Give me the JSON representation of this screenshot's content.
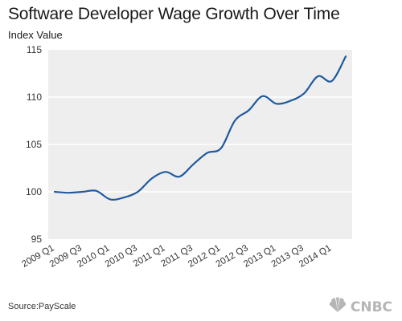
{
  "header": {
    "title": "Software Developer Wage Growth Over Time",
    "subtitle": "Index Value"
  },
  "footer": {
    "source": "Source:PayScale",
    "brand": "CNBC",
    "brand_icon": "peacock-icon"
  },
  "colors": {
    "line": "#1f5a9e",
    "plot_background": "#eeeeee",
    "grid": "#ffffff"
  },
  "chart_data": {
    "type": "line",
    "title": "Software Developer Wage Growth Over Time",
    "ylabel": "Index Value",
    "xlabel": "",
    "ylim": [
      95,
      115
    ],
    "y_ticks": [
      95,
      100,
      105,
      110,
      115
    ],
    "grid": true,
    "legend": "none",
    "x_tick_labels": [
      "2009 Q1",
      "2009 Q3",
      "2010 Q1",
      "2010 Q3",
      "2011 Q1",
      "2011 Q3",
      "2012 Q1",
      "2012 Q3",
      "2013 Q1",
      "2013 Q3",
      "2014 Q1"
    ],
    "x_tick_quarters": [
      0,
      2,
      4,
      6,
      8,
      10,
      12,
      14,
      16,
      18,
      20
    ],
    "quarters": [
      0,
      1,
      2,
      3,
      4,
      5,
      6,
      7,
      8,
      9,
      10,
      11,
      12,
      13,
      14,
      15,
      16,
      17,
      18,
      19,
      20,
      21
    ],
    "values": [
      100.0,
      99.9,
      100.0,
      100.1,
      99.2,
      99.4,
      100.0,
      101.4,
      102.1,
      101.6,
      102.9,
      104.1,
      104.6,
      107.5,
      108.6,
      110.1,
      109.3,
      109.6,
      110.4,
      112.2,
      111.7,
      114.3
    ]
  }
}
